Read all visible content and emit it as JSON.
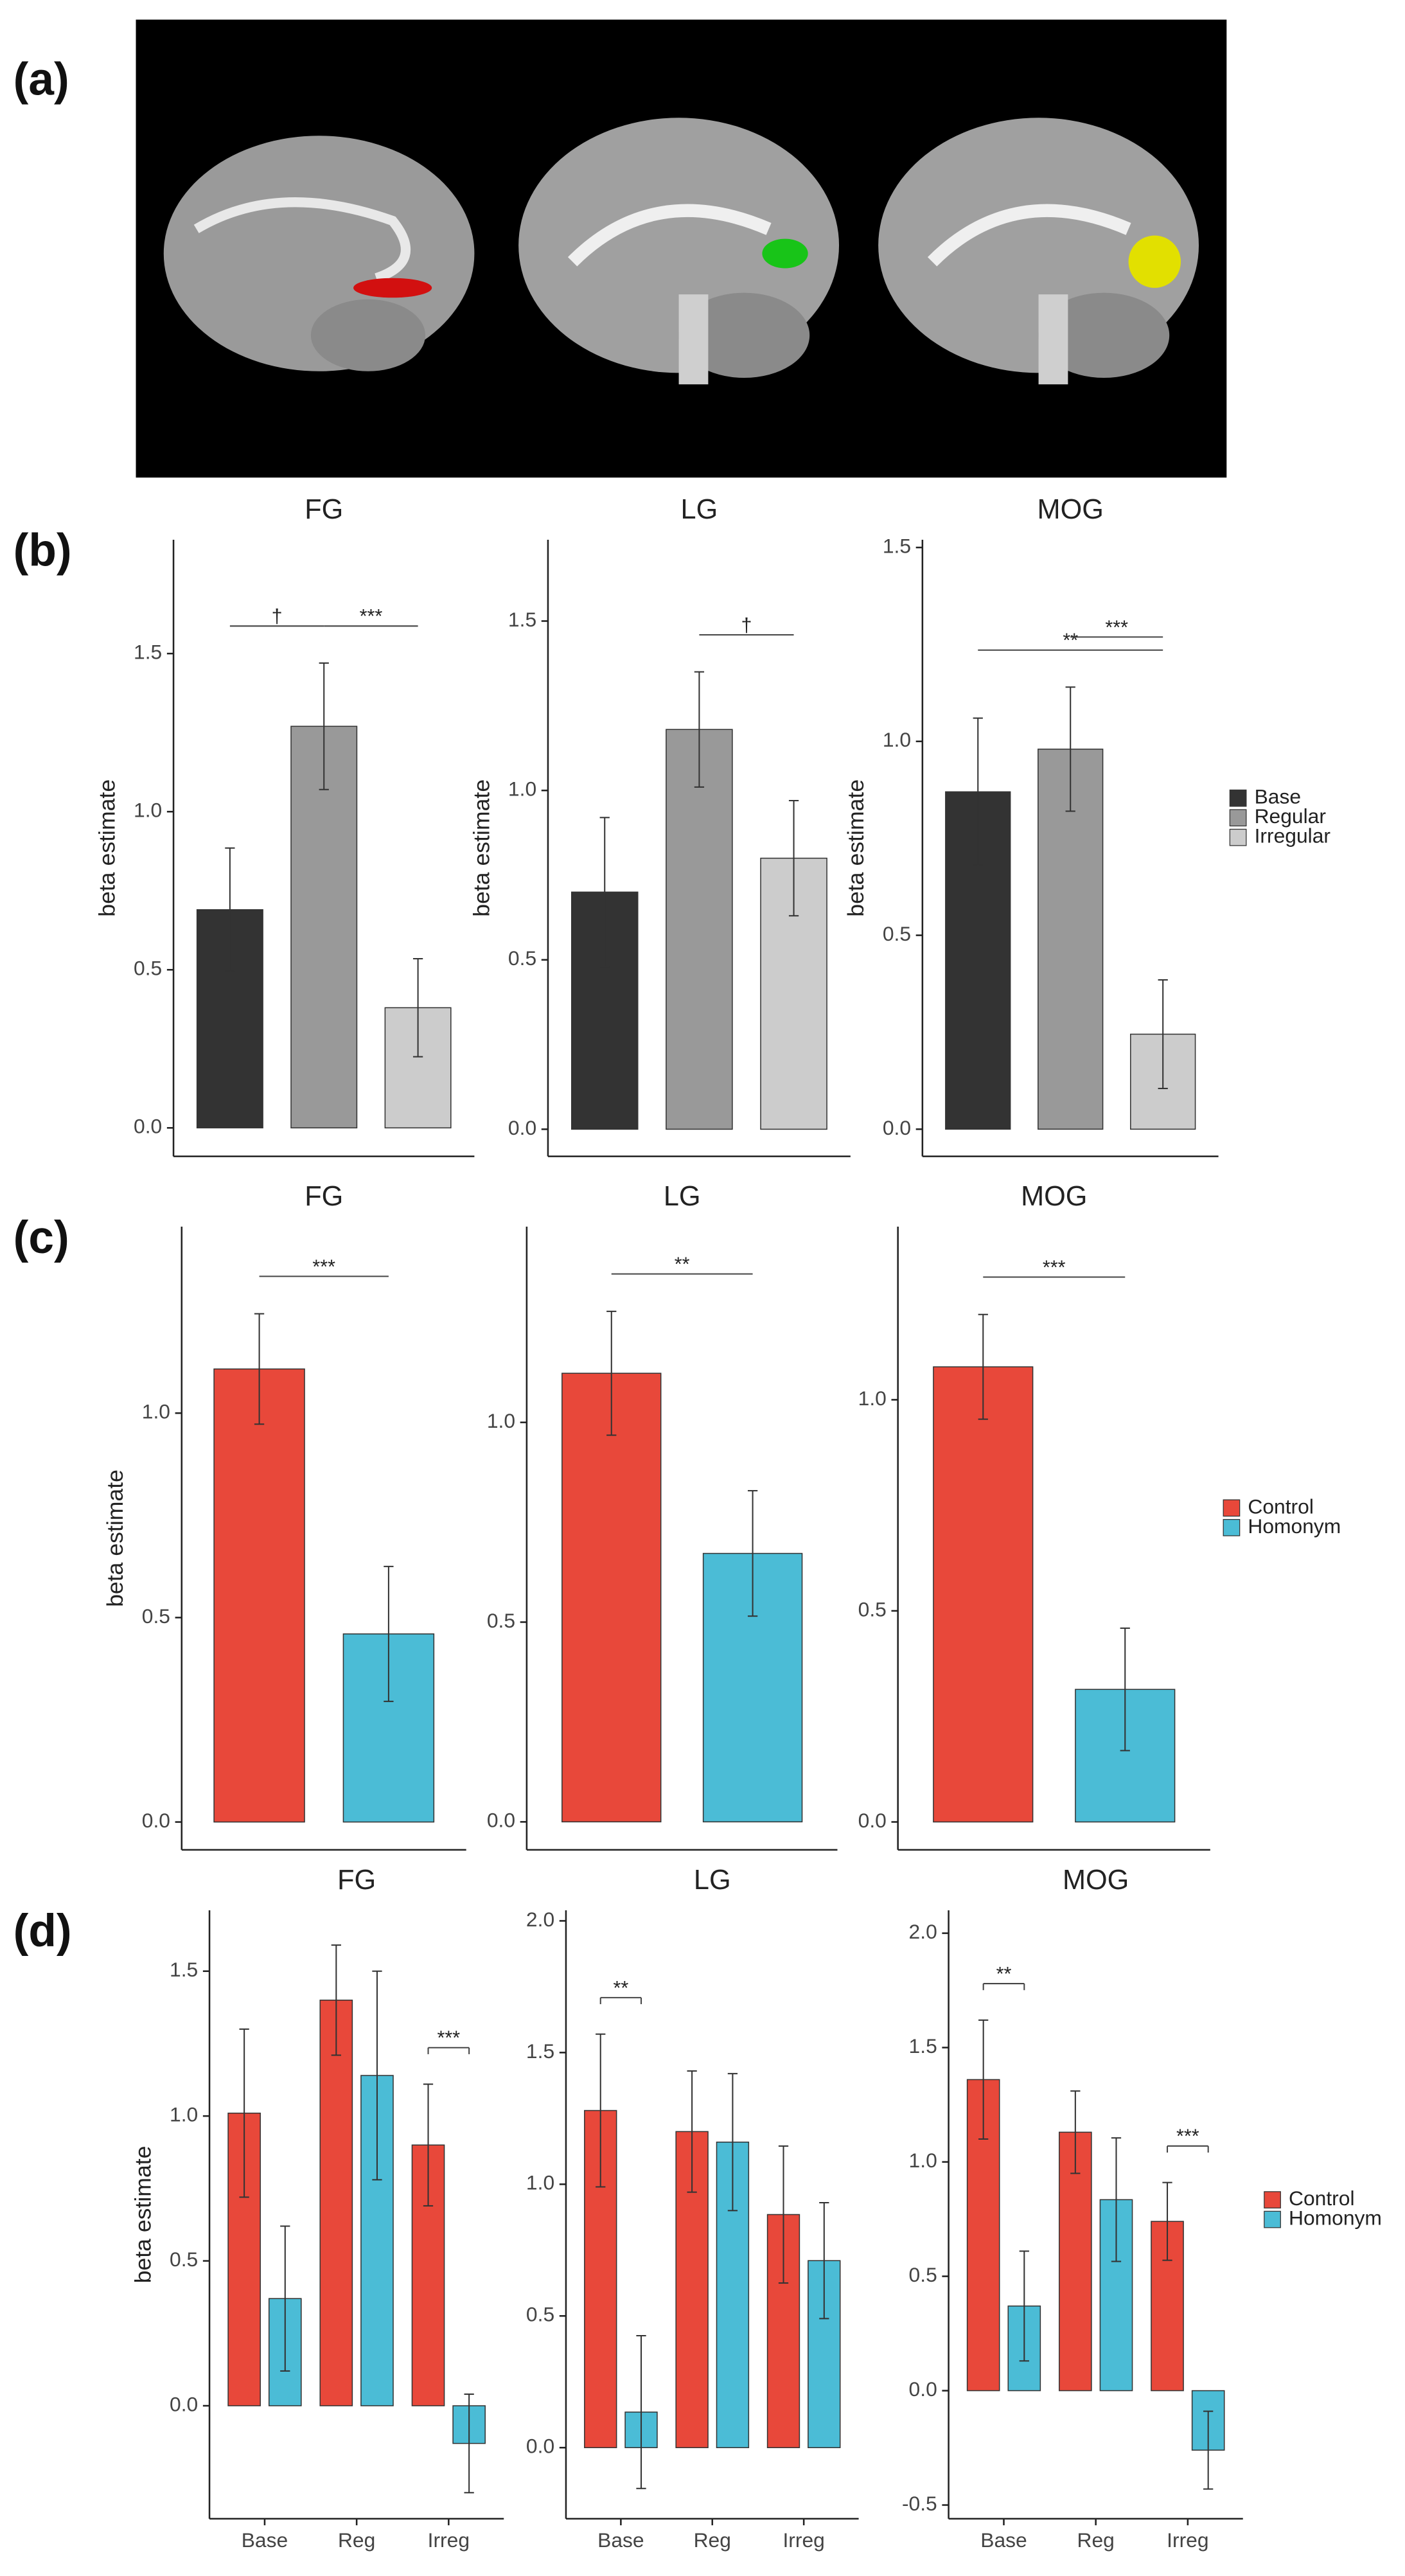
{
  "panel_labels": [
    "(a)",
    "(b)",
    "(c)",
    "(d)"
  ],
  "chart_data": [
    {
      "type": "bar",
      "title": "FG",
      "ylabel": "beta estimate",
      "series": [
        {
          "color": "#333333",
          "values": [
            0.69
          ],
          "errors": [
            0.195
          ]
        },
        {
          "color": "#999999",
          "values": [
            1.27
          ],
          "errors": [
            0.2
          ]
        },
        {
          "color": "#cccccc",
          "values": [
            0.38
          ],
          "errors": [
            0.155
          ]
        }
      ],
      "ylim": [
        -0.09,
        1.86
      ],
      "yticks": [
        {
          "value": 0,
          "label": "0.0"
        },
        0.5,
        {
          "value": 1,
          "label": "1.0"
        },
        1.5
      ],
      "annotations": [
        {
          "label": "†",
          "group": 0,
          "from": 0,
          "to": 1
        },
        {
          "label": "***",
          "group": 0,
          "from": 1,
          "to": 2
        }
      ]
    },
    {
      "type": "bar",
      "title": "LG",
      "ylabel": "beta estimate",
      "series": [
        {
          "color": "#333333",
          "values": [
            0.7
          ],
          "errors": [
            0.22
          ]
        },
        {
          "color": "#999999",
          "values": [
            1.18
          ],
          "errors": [
            0.17
          ]
        },
        {
          "color": "#cccccc",
          "values": [
            0.8
          ],
          "errors": [
            0.17
          ]
        }
      ],
      "ylim": [
        -0.08,
        1.74
      ],
      "yticks": [
        {
          "value": 0,
          "label": "0.0"
        },
        0.5,
        {
          "value": 1,
          "label": "1.0"
        },
        1.5
      ],
      "annotations": [
        {
          "label": "†",
          "group": 0,
          "from": 1,
          "to": 2
        }
      ]
    },
    {
      "type": "bar",
      "title": "MOG",
      "ylabel": "beta estimate",
      "legend": "right",
      "series": [
        {
          "name": "Base",
          "color": "#333333",
          "values": [
            0.87
          ],
          "errors": [
            0.19
          ]
        },
        {
          "name": "Regular",
          "color": "#999999",
          "values": [
            0.98
          ],
          "errors": [
            0.16
          ]
        },
        {
          "name": "Irregular",
          "color": "#cccccc",
          "values": [
            0.245
          ],
          "errors": [
            0.14
          ]
        }
      ],
      "ylim": [
        -0.07,
        1.52
      ],
      "yticks": [
        {
          "value": 0,
          "label": "0.0"
        },
        0.5,
        {
          "value": 1,
          "label": "1.0"
        },
        1.5
      ],
      "annotations": [
        {
          "label": "**",
          "group": 0,
          "from": 0,
          "to": 2
        },
        {
          "label": "***",
          "group": 0,
          "from": 1,
          "to": 2
        }
      ]
    },
    {
      "type": "bar",
      "title": "FG",
      "ylabel": "beta estimate",
      "series": [
        {
          "color": "#e8483a",
          "values": [
            1.108
          ],
          "errors": [
            0.135
          ]
        },
        {
          "color": "#4bbcd6",
          "values": [
            0.46
          ],
          "errors": [
            0.165
          ]
        }
      ],
      "ylim": [
        -0.068,
        1.456
      ],
      "yticks": [
        {
          "value": 0,
          "label": "0.0"
        },
        0.5,
        {
          "value": 1,
          "label": "1.0"
        }
      ],
      "annotations": [
        {
          "label": "***",
          "group": 0,
          "from": 0,
          "to": 1
        }
      ]
    },
    {
      "type": "bar",
      "title": "LG",
      "series": [
        {
          "color": "#e8483a",
          "values": [
            1.123
          ],
          "errors": [
            0.155
          ]
        },
        {
          "color": "#4bbcd6",
          "values": [
            0.672
          ],
          "errors": [
            0.157
          ]
        }
      ],
      "ylim": [
        -0.07,
        1.49
      ],
      "yticks": [
        {
          "value": 0,
          "label": "0.0"
        },
        0.5,
        {
          "value": 1,
          "label": "1.0"
        }
      ],
      "annotations": [
        {
          "label": "**",
          "group": 0,
          "from": 0,
          "to": 1
        }
      ]
    },
    {
      "type": "bar",
      "title": "MOG",
      "legend": "right",
      "series": [
        {
          "name": "Control",
          "color": "#e8483a",
          "values": [
            1.078
          ],
          "errors": [
            0.124
          ]
        },
        {
          "name": "Homonym",
          "color": "#4bbcd6",
          "values": [
            0.314
          ],
          "errors": [
            0.145
          ]
        }
      ],
      "ylim": [
        -0.066,
        1.41
      ],
      "yticks": [
        {
          "value": 0,
          "label": "0.0"
        },
        0.5,
        {
          "value": 1,
          "label": "1.0"
        }
      ],
      "annotations": [
        {
          "label": "***",
          "group": 0,
          "from": 0,
          "to": 1
        }
      ]
    },
    {
      "type": "bar",
      "title": "FG",
      "ylabel": "beta estimate",
      "categories": [
        "Base",
        "Reg",
        "Irreg"
      ],
      "series": [
        {
          "color": "#e8483a",
          "values": [
            1.01,
            1.4,
            0.9
          ],
          "errors": [
            0.29,
            0.19,
            0.21
          ]
        },
        {
          "color": "#4bbcd6",
          "values": [
            0.37,
            1.14,
            -0.13
          ],
          "errors": [
            0.25,
            0.36,
            0.17
          ]
        }
      ],
      "ylim": [
        -0.39,
        1.71
      ],
      "yticks": [
        {
          "value": 0,
          "label": "0.0"
        },
        0.5,
        {
          "value": 1,
          "label": "1.0"
        },
        1.5
      ],
      "annotations": [
        {
          "label": "***",
          "group": 2,
          "from": 0,
          "to": 1
        }
      ]
    },
    {
      "type": "bar",
      "title": "LG",
      "categories": [
        "Base",
        "Reg",
        "Irreg"
      ],
      "series": [
        {
          "color": "#e8483a",
          "values": [
            1.28,
            1.2,
            0.885
          ],
          "errors": [
            0.29,
            0.23,
            0.26
          ]
        },
        {
          "color": "#4bbcd6",
          "values": [
            0.135,
            1.16,
            0.71
          ],
          "errors": [
            0.29,
            0.26,
            0.22
          ]
        }
      ],
      "ylim": [
        -0.27,
        2.04
      ],
      "yticks": [
        {
          "value": 0,
          "label": "0.0"
        },
        0.5,
        {
          "value": 1,
          "label": "1.0"
        },
        1.5,
        {
          "value": 2,
          "label": "2.0"
        }
      ],
      "annotations": [
        {
          "label": "**",
          "group": 0,
          "from": 0,
          "to": 1
        }
      ]
    },
    {
      "type": "bar",
      "title": "MOG",
      "categories": [
        "Base",
        "Reg",
        "Irreg"
      ],
      "legend": "right",
      "series": [
        {
          "name": "Control",
          "color": "#e8483a",
          "values": [
            1.36,
            1.13,
            0.74
          ],
          "errors": [
            0.26,
            0.18,
            0.17
          ]
        },
        {
          "name": "Homonym",
          "color": "#4bbcd6",
          "values": [
            0.37,
            0.835,
            -0.26
          ],
          "errors": [
            0.24,
            0.27,
            0.17
          ]
        }
      ],
      "ylim": [
        -0.56,
        2.1
      ],
      "yticks": [
        -0.5,
        {
          "value": 0,
          "label": "0.0"
        },
        0.5,
        {
          "value": 1,
          "label": "1.0"
        },
        1.5,
        {
          "value": 2,
          "label": "2.0"
        }
      ],
      "annotations": [
        {
          "label": "**",
          "group": 0,
          "from": 0,
          "to": 1
        },
        {
          "label": "***",
          "group": 2,
          "from": 0,
          "to": 1
        }
      ]
    }
  ]
}
